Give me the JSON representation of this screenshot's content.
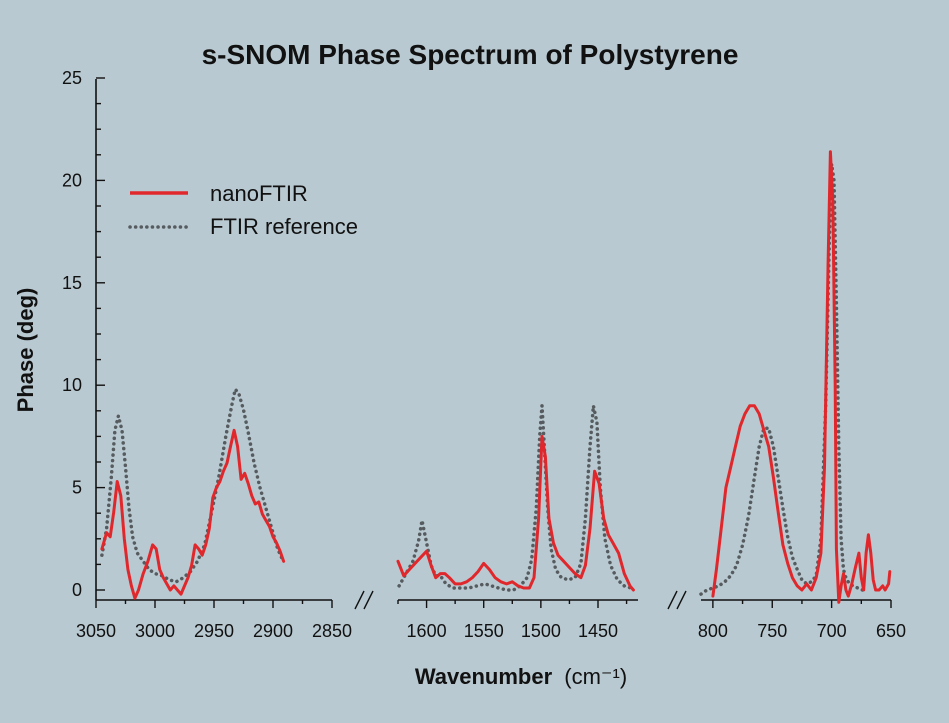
{
  "chart_data": {
    "type": "line",
    "title": "s-SNOM Phase Spectrum of Polystyrene",
    "ylabel": "Phase (deg)",
    "xlabel": "Wavenumber",
    "xlabel_unit": "(cm⁻¹)",
    "ylim": [
      0,
      25
    ],
    "yticks": [
      0,
      5,
      10,
      15,
      20,
      25
    ],
    "grid": false,
    "legend_placement": "upper-left",
    "panels": [
      {
        "xlim": [
          3050,
          2850
        ],
        "xticks": [
          3050,
          3000,
          2950,
          2900,
          2850
        ],
        "xtick_labels": [
          "3050",
          "3000",
          "2950",
          "2900",
          "2850"
        ]
      },
      {
        "xlim": [
          1625,
          1415
        ],
        "xticks": [
          1600,
          1550,
          1500,
          1450
        ],
        "xtick_labels": [
          "1600",
          "1550",
          "1500",
          "1450"
        ]
      },
      {
        "xlim": [
          810,
          650
        ],
        "xticks": [
          800,
          750,
          700,
          650
        ],
        "xtick_labels": [
          "800",
          "750",
          "700",
          "650"
        ]
      }
    ],
    "series": [
      {
        "name": "nanoFTIR",
        "color": "#e0282c",
        "style": "solid",
        "segments": [
          [
            [
              3045,
              2.0
            ],
            [
              3041,
              2.8
            ],
            [
              3038,
              2.6
            ],
            [
              3035,
              3.8
            ],
            [
              3032,
              5.3
            ],
            [
              3029,
              4.6
            ],
            [
              3026,
              2.5
            ],
            [
              3023,
              1.0
            ],
            [
              3020,
              0.2
            ],
            [
              3017,
              -0.4
            ],
            [
              3014,
              0.0
            ],
            [
              3010,
              0.8
            ],
            [
              3006,
              1.4
            ],
            [
              3002,
              2.2
            ],
            [
              2999,
              2.0
            ],
            [
              2996,
              1.0
            ],
            [
              2993,
              0.6
            ],
            [
              2990,
              0.3
            ],
            [
              2987,
              0.0
            ],
            [
              2984,
              0.2
            ],
            [
              2981,
              0.0
            ],
            [
              2978,
              -0.2
            ],
            [
              2975,
              0.2
            ],
            [
              2972,
              0.6
            ],
            [
              2969,
              1.2
            ],
            [
              2966,
              2.2
            ],
            [
              2963,
              2.0
            ],
            [
              2960,
              1.7
            ],
            [
              2957,
              2.2
            ],
            [
              2954,
              3.0
            ],
            [
              2951,
              4.5
            ],
            [
              2948,
              5.0
            ],
            [
              2945,
              5.3
            ],
            [
              2942,
              5.8
            ],
            [
              2939,
              6.2
            ],
            [
              2936,
              7.0
            ],
            [
              2933,
              7.8
            ],
            [
              2930,
              7.0
            ],
            [
              2927,
              5.4
            ],
            [
              2924,
              5.7
            ],
            [
              2921,
              5.2
            ],
            [
              2918,
              4.6
            ],
            [
              2915,
              4.2
            ],
            [
              2912,
              4.3
            ],
            [
              2909,
              3.7
            ],
            [
              2906,
              3.4
            ],
            [
              2903,
              3.1
            ],
            [
              2900,
              2.6
            ],
            [
              2897,
              2.3
            ],
            [
              2894,
              1.9
            ],
            [
              2891,
              1.4
            ]
          ],
          [
            [
              1625,
              1.4
            ],
            [
              1620,
              0.7
            ],
            [
              1615,
              1.0
            ],
            [
              1610,
              1.3
            ],
            [
              1605,
              1.6
            ],
            [
              1600,
              1.9
            ],
            [
              1596,
              1.2
            ],
            [
              1592,
              0.6
            ],
            [
              1588,
              0.8
            ],
            [
              1584,
              0.8
            ],
            [
              1580,
              0.6
            ],
            [
              1575,
              0.3
            ],
            [
              1570,
              0.3
            ],
            [
              1565,
              0.4
            ],
            [
              1560,
              0.6
            ],
            [
              1555,
              0.9
            ],
            [
              1550,
              1.3
            ],
            [
              1545,
              1.0
            ],
            [
              1540,
              0.6
            ],
            [
              1535,
              0.4
            ],
            [
              1530,
              0.3
            ],
            [
              1525,
              0.4
            ],
            [
              1520,
              0.2
            ],
            [
              1515,
              0.1
            ],
            [
              1510,
              0.1
            ],
            [
              1506,
              0.6
            ],
            [
              1502,
              3.5
            ],
            [
              1499,
              7.5
            ],
            [
              1496,
              6.5
            ],
            [
              1493,
              3.5
            ],
            [
              1489,
              2.3
            ],
            [
              1485,
              1.7
            ],
            [
              1480,
              1.4
            ],
            [
              1475,
              1.1
            ],
            [
              1470,
              0.8
            ],
            [
              1465,
              0.6
            ],
            [
              1461,
              1.2
            ],
            [
              1457,
              3.0
            ],
            [
              1453,
              5.8
            ],
            [
              1449,
              5.2
            ],
            [
              1445,
              3.5
            ],
            [
              1441,
              2.7
            ],
            [
              1437,
              2.3
            ],
            [
              1432,
              1.8
            ],
            [
              1427,
              0.8
            ],
            [
              1422,
              0.2
            ],
            [
              1419,
              0.0
            ]
          ],
          [
            [
              800,
              -0.3
            ],
            [
              797,
              1.0
            ],
            [
              793,
              3.0
            ],
            [
              789,
              5.0
            ],
            [
              785,
              6.0
            ],
            [
              781,
              7.0
            ],
            [
              777,
              8.0
            ],
            [
              773,
              8.6
            ],
            [
              769,
              9.0
            ],
            [
              765,
              9.0
            ],
            [
              761,
              8.6
            ],
            [
              757,
              7.8
            ],
            [
              753,
              7.0
            ],
            [
              749,
              5.5
            ],
            [
              745,
              3.8
            ],
            [
              741,
              2.2
            ],
            [
              737,
              1.3
            ],
            [
              733,
              0.6
            ],
            [
              729,
              0.2
            ],
            [
              725,
              0.0
            ],
            [
              721,
              0.3
            ],
            [
              717,
              0.0
            ],
            [
              713,
              0.6
            ],
            [
              709,
              1.8
            ],
            [
              706,
              6.0
            ],
            [
              703,
              16.0
            ],
            [
              701,
              21.4
            ],
            [
              699,
              19.0
            ],
            [
              697,
              10.0
            ],
            [
              696,
              2.0
            ],
            [
              694,
              -0.6
            ],
            [
              692,
              0.2
            ],
            [
              690,
              0.8
            ],
            [
              688,
              0.0
            ],
            [
              686,
              -0.3
            ],
            [
              683,
              0.3
            ],
            [
              680,
              1.1
            ],
            [
              677,
              1.8
            ],
            [
              675,
              0.6
            ],
            [
              673,
              0.0
            ],
            [
              671,
              1.8
            ],
            [
              669,
              2.7
            ],
            [
              667,
              1.8
            ],
            [
              665,
              0.5
            ],
            [
              663,
              0.0
            ],
            [
              660,
              0.0
            ],
            [
              657,
              0.2
            ],
            [
              655,
              0.0
            ],
            [
              652,
              0.3
            ],
            [
              651,
              0.9
            ]
          ]
        ]
      },
      {
        "name": "FTIR reference",
        "color": "#555b5e",
        "style": "dotted",
        "segments": [
          [
            [
              3045,
              1.7
            ],
            [
              3041,
              3.0
            ],
            [
              3037,
              5.5
            ],
            [
              3034,
              7.8
            ],
            [
              3031,
              8.5
            ],
            [
              3028,
              7.8
            ],
            [
              3025,
              6.0
            ],
            [
              3022,
              4.0
            ],
            [
              3019,
              2.6
            ],
            [
              3015,
              1.8
            ],
            [
              3010,
              1.4
            ],
            [
              3005,
              1.0
            ],
            [
              3000,
              0.8
            ],
            [
              2994,
              0.7
            ],
            [
              2988,
              0.5
            ],
            [
              2982,
              0.4
            ],
            [
              2976,
              0.6
            ],
            [
              2970,
              0.9
            ],
            [
              2964,
              1.4
            ],
            [
              2958,
              2.2
            ],
            [
              2952,
              3.8
            ],
            [
              2946,
              5.5
            ],
            [
              2940,
              7.5
            ],
            [
              2935,
              9.0
            ],
            [
              2932,
              9.8
            ],
            [
              2929,
              9.6
            ],
            [
              2925,
              8.8
            ],
            [
              2921,
              7.7
            ],
            [
              2916,
              6.2
            ],
            [
              2911,
              5.0
            ],
            [
              2906,
              4.0
            ],
            [
              2901,
              3.0
            ],
            [
              2896,
              2.0
            ],
            [
              2892,
              1.5
            ]
          ],
          [
            [
              1624,
              0.2
            ],
            [
              1618,
              0.8
            ],
            [
              1612,
              1.4
            ],
            [
              1607,
              2.4
            ],
            [
              1604,
              3.4
            ],
            [
              1600,
              2.3
            ],
            [
              1596,
              1.2
            ],
            [
              1592,
              0.7
            ],
            [
              1588,
              0.7
            ],
            [
              1583,
              0.3
            ],
            [
              1577,
              0.1
            ],
            [
              1570,
              0.1
            ],
            [
              1563,
              0.1
            ],
            [
              1556,
              0.2
            ],
            [
              1549,
              0.3
            ],
            [
              1543,
              0.2
            ],
            [
              1537,
              0.1
            ],
            [
              1530,
              0.0
            ],
            [
              1524,
              0.0
            ],
            [
              1518,
              0.2
            ],
            [
              1512,
              0.6
            ],
            [
              1508,
              1.5
            ],
            [
              1504,
              4.0
            ],
            [
              1501,
              7.5
            ],
            [
              1499,
              9.0
            ],
            [
              1497,
              7.0
            ],
            [
              1494,
              4.0
            ],
            [
              1491,
              2.0
            ],
            [
              1487,
              1.0
            ],
            [
              1482,
              0.6
            ],
            [
              1476,
              0.5
            ],
            [
              1470,
              0.6
            ],
            [
              1465,
              1.3
            ],
            [
              1461,
              3.5
            ],
            [
              1457,
              7.0
            ],
            [
              1454,
              9.0
            ],
            [
              1451,
              8.2
            ],
            [
              1448,
              5.0
            ],
            [
              1444,
              2.5
            ],
            [
              1439,
              1.2
            ],
            [
              1433,
              0.5
            ],
            [
              1427,
              0.2
            ],
            [
              1421,
              0.1
            ]
          ],
          [
            [
              810,
              -0.2
            ],
            [
              805,
              0.0
            ],
            [
              800,
              0.1
            ],
            [
              795,
              0.2
            ],
            [
              790,
              0.4
            ],
            [
              785,
              0.7
            ],
            [
              780,
              1.2
            ],
            [
              775,
              2.2
            ],
            [
              770,
              3.6
            ],
            [
              765,
              5.5
            ],
            [
              761,
              7.0
            ],
            [
              757,
              7.9
            ],
            [
              753,
              7.9
            ],
            [
              749,
              7.0
            ],
            [
              745,
              5.5
            ],
            [
              741,
              4.0
            ],
            [
              737,
              2.6
            ],
            [
              733,
              1.6
            ],
            [
              729,
              1.0
            ],
            [
              725,
              0.5
            ],
            [
              721,
              0.3
            ],
            [
              717,
              0.4
            ],
            [
              713,
              0.7
            ],
            [
              709,
              2.5
            ],
            [
              705,
              9.0
            ],
            [
              702,
              17.0
            ],
            [
              700,
              20.8
            ],
            [
              698,
              20.0
            ],
            [
              696,
              14.0
            ],
            [
              694,
              7.0
            ],
            [
              692,
              2.5
            ],
            [
              690,
              1.0
            ],
            [
              688,
              0.6
            ],
            [
              685,
              0.3
            ],
            [
              682,
              0.2
            ],
            [
              678,
              0.1
            ],
            [
              674,
              0.0
            ],
            [
              670,
              0.0
            ]
          ]
        ]
      }
    ]
  }
}
